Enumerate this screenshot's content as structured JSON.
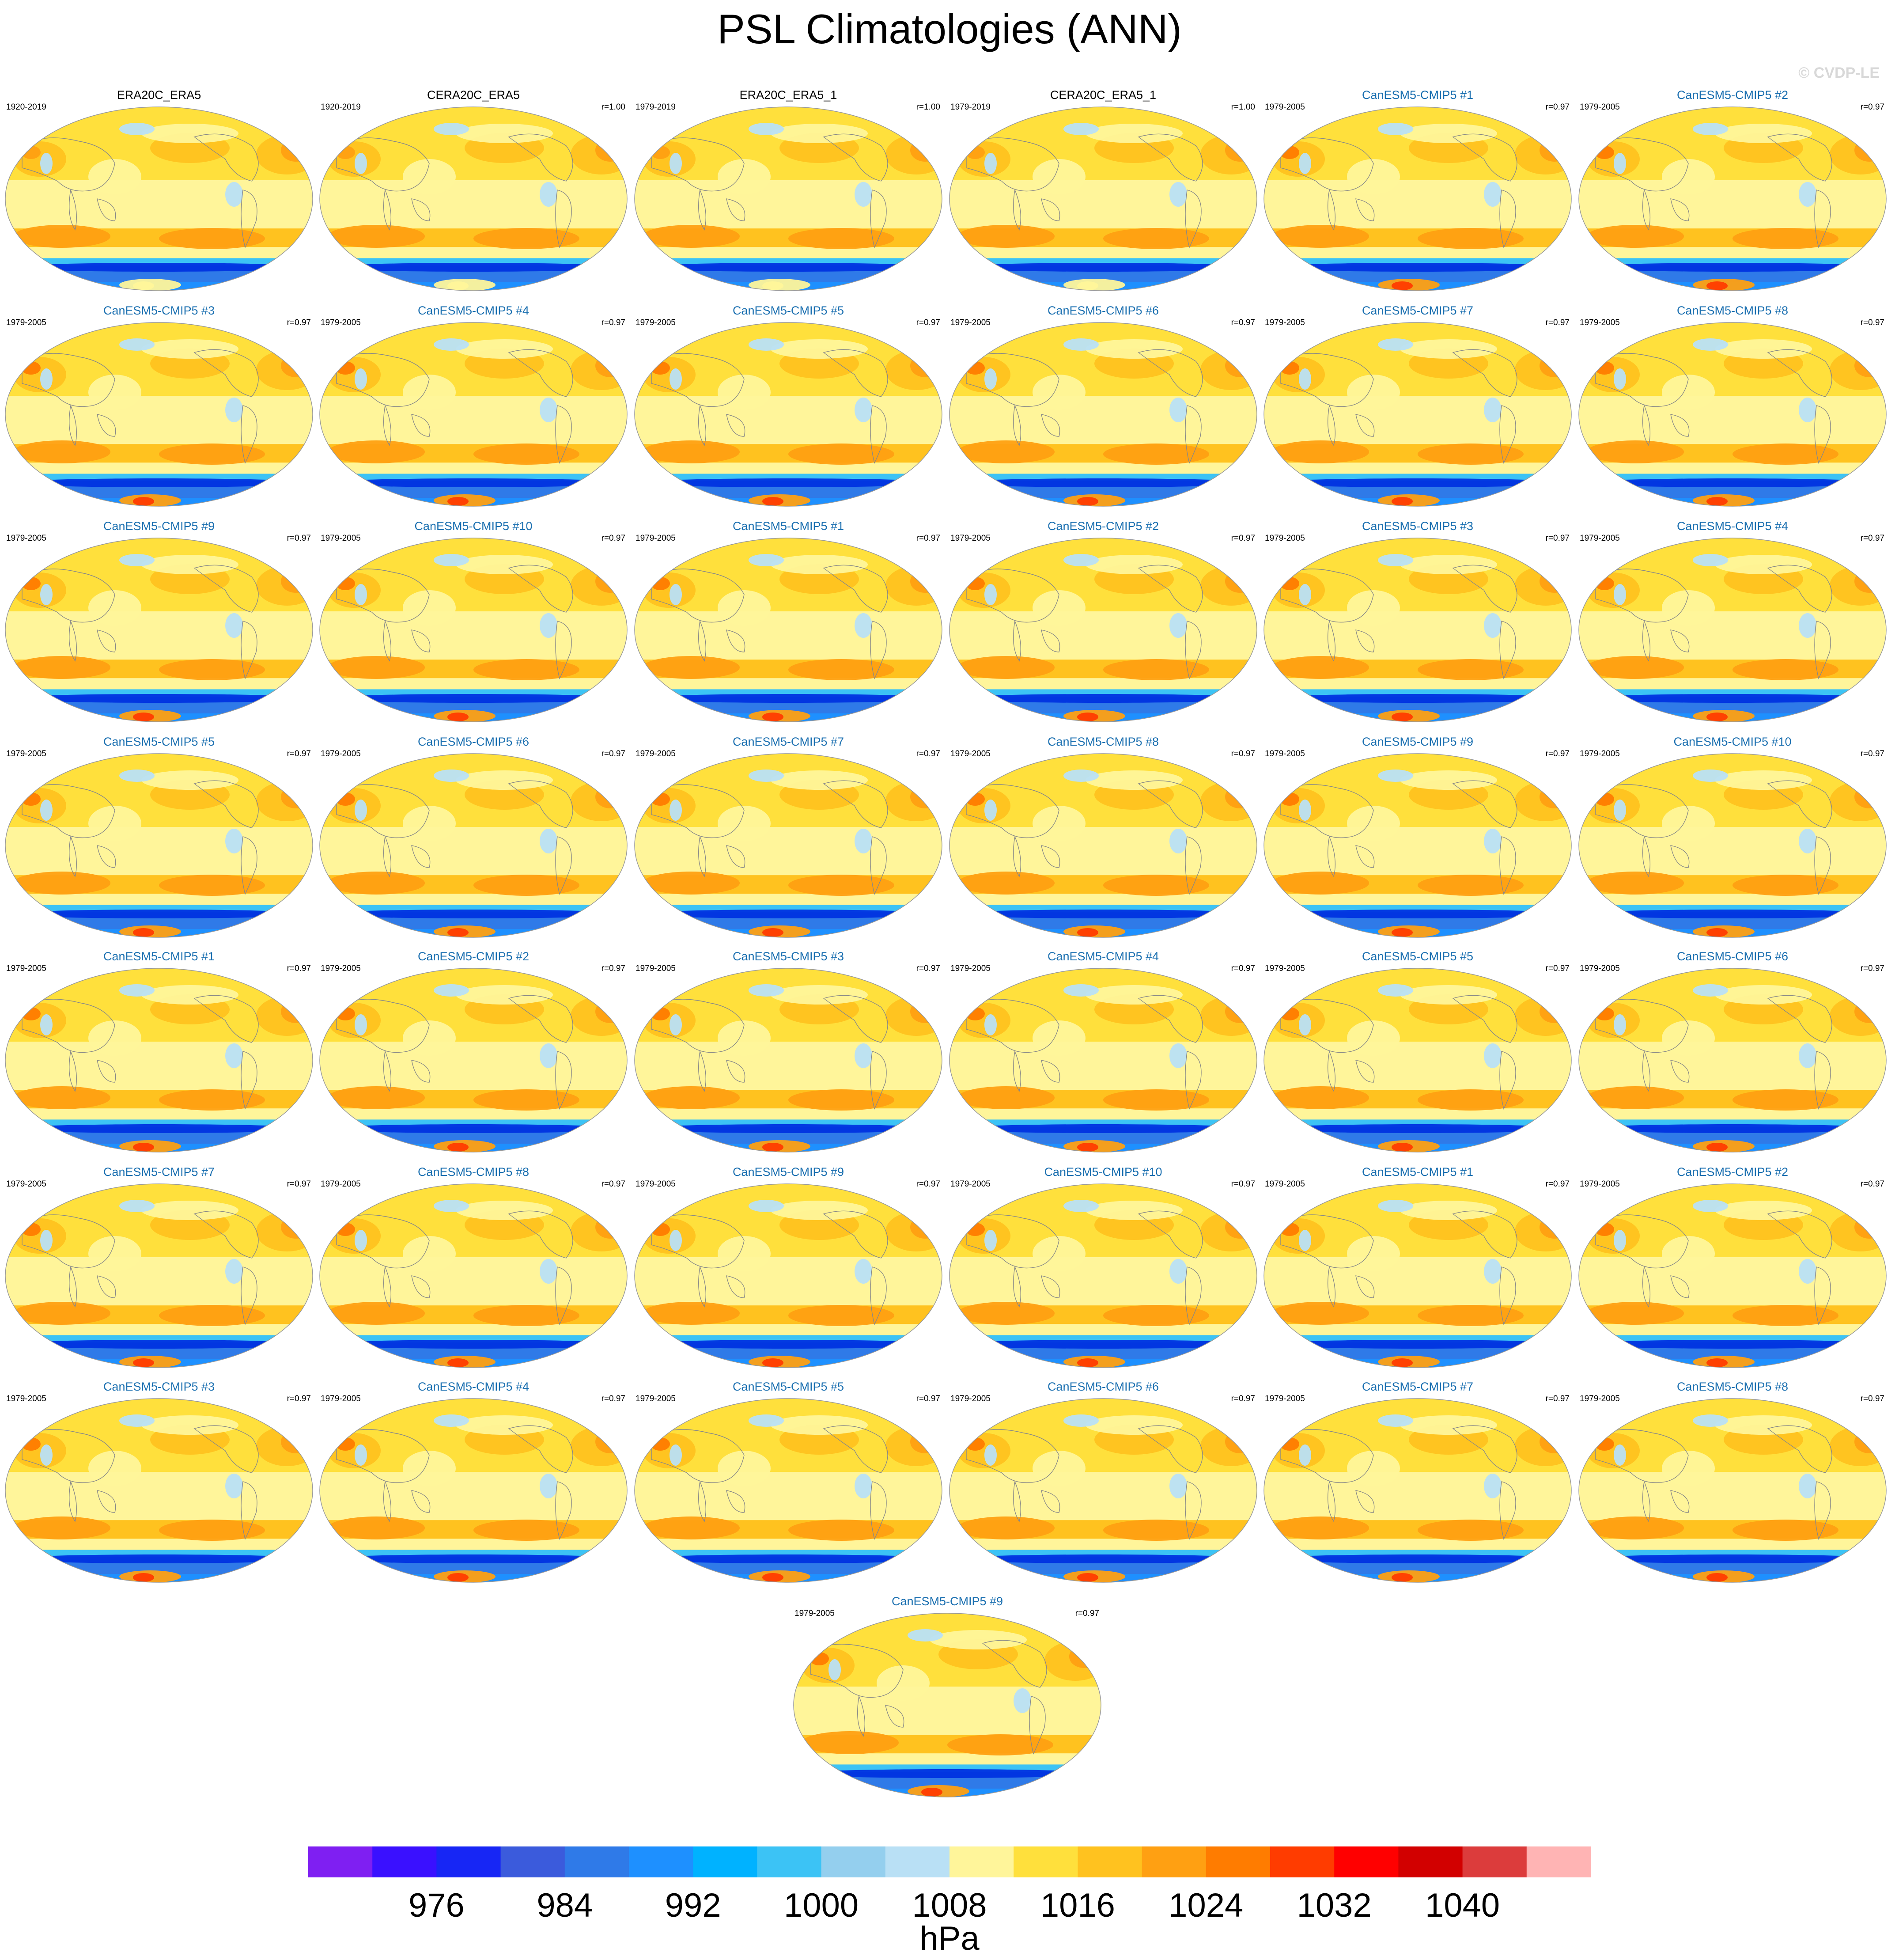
{
  "title": "PSL Climatologies (ANN)",
  "copyright": "© CVDP-LE",
  "panels": [
    {
      "name": "ERA20C_ERA5",
      "period": "1920-2019",
      "r": "",
      "kind": "obs"
    },
    {
      "name": "CERA20C_ERA5",
      "period": "1920-2019",
      "r": "r=1.00",
      "kind": "obs"
    },
    {
      "name": "ERA20C_ERA5_1",
      "period": "1979-2019",
      "r": "r=1.00",
      "kind": "obs"
    },
    {
      "name": "CERA20C_ERA5_1",
      "period": "1979-2019",
      "r": "r=1.00",
      "kind": "obs"
    },
    {
      "name": "CanESM5-CMIP5 #1",
      "period": "1979-2005",
      "r": "r=0.97",
      "kind": "model"
    },
    {
      "name": "CanESM5-CMIP5 #2",
      "period": "1979-2005",
      "r": "r=0.97",
      "kind": "model"
    },
    {
      "name": "CanESM5-CMIP5 #3",
      "period": "1979-2005",
      "r": "r=0.97",
      "kind": "model"
    },
    {
      "name": "CanESM5-CMIP5 #4",
      "period": "1979-2005",
      "r": "r=0.97",
      "kind": "model"
    },
    {
      "name": "CanESM5-CMIP5 #5",
      "period": "1979-2005",
      "r": "r=0.97",
      "kind": "model"
    },
    {
      "name": "CanESM5-CMIP5 #6",
      "period": "1979-2005",
      "r": "r=0.97",
      "kind": "model"
    },
    {
      "name": "CanESM5-CMIP5 #7",
      "period": "1979-2005",
      "r": "r=0.97",
      "kind": "model"
    },
    {
      "name": "CanESM5-CMIP5 #8",
      "period": "1979-2005",
      "r": "r=0.97",
      "kind": "model"
    },
    {
      "name": "CanESM5-CMIP5 #9",
      "period": "1979-2005",
      "r": "r=0.97",
      "kind": "model"
    },
    {
      "name": "CanESM5-CMIP5 #10",
      "period": "1979-2005",
      "r": "r=0.97",
      "kind": "model"
    },
    {
      "name": "CanESM5-CMIP5 #1",
      "period": "1979-2005",
      "r": "r=0.97",
      "kind": "model"
    },
    {
      "name": "CanESM5-CMIP5 #2",
      "period": "1979-2005",
      "r": "r=0.97",
      "kind": "model"
    },
    {
      "name": "CanESM5-CMIP5 #3",
      "period": "1979-2005",
      "r": "r=0.97",
      "kind": "model"
    },
    {
      "name": "CanESM5-CMIP5 #4",
      "period": "1979-2005",
      "r": "r=0.97",
      "kind": "model"
    },
    {
      "name": "CanESM5-CMIP5 #5",
      "period": "1979-2005",
      "r": "r=0.97",
      "kind": "model"
    },
    {
      "name": "CanESM5-CMIP5 #6",
      "period": "1979-2005",
      "r": "r=0.97",
      "kind": "model"
    },
    {
      "name": "CanESM5-CMIP5 #7",
      "period": "1979-2005",
      "r": "r=0.97",
      "kind": "model"
    },
    {
      "name": "CanESM5-CMIP5 #8",
      "period": "1979-2005",
      "r": "r=0.97",
      "kind": "model"
    },
    {
      "name": "CanESM5-CMIP5 #9",
      "period": "1979-2005",
      "r": "r=0.97",
      "kind": "model"
    },
    {
      "name": "CanESM5-CMIP5 #10",
      "period": "1979-2005",
      "r": "r=0.97",
      "kind": "model"
    },
    {
      "name": "CanESM5-CMIP5 #1",
      "period": "1979-2005",
      "r": "r=0.97",
      "kind": "model"
    },
    {
      "name": "CanESM5-CMIP5 #2",
      "period": "1979-2005",
      "r": "r=0.97",
      "kind": "model"
    },
    {
      "name": "CanESM5-CMIP5 #3",
      "period": "1979-2005",
      "r": "r=0.97",
      "kind": "model"
    },
    {
      "name": "CanESM5-CMIP5 #4",
      "period": "1979-2005",
      "r": "r=0.97",
      "kind": "model"
    },
    {
      "name": "CanESM5-CMIP5 #5",
      "period": "1979-2005",
      "r": "r=0.97",
      "kind": "model"
    },
    {
      "name": "CanESM5-CMIP5 #6",
      "period": "1979-2005",
      "r": "r=0.97",
      "kind": "model"
    },
    {
      "name": "CanESM5-CMIP5 #7",
      "period": "1979-2005",
      "r": "r=0.97",
      "kind": "model"
    },
    {
      "name": "CanESM5-CMIP5 #8",
      "period": "1979-2005",
      "r": "r=0.97",
      "kind": "model"
    },
    {
      "name": "CanESM5-CMIP5 #9",
      "period": "1979-2005",
      "r": "r=0.97",
      "kind": "model"
    },
    {
      "name": "CanESM5-CMIP5 #10",
      "period": "1979-2005",
      "r": "r=0.97",
      "kind": "model"
    },
    {
      "name": "CanESM5-CMIP5 #1",
      "period": "1979-2005",
      "r": "r=0.97",
      "kind": "model"
    },
    {
      "name": "CanESM5-CMIP5 #2",
      "period": "1979-2005",
      "r": "r=0.97",
      "kind": "model"
    },
    {
      "name": "CanESM5-CMIP5 #3",
      "period": "1979-2005",
      "r": "r=0.97",
      "kind": "model"
    },
    {
      "name": "CanESM5-CMIP5 #4",
      "period": "1979-2005",
      "r": "r=0.97",
      "kind": "model"
    },
    {
      "name": "CanESM5-CMIP5 #5",
      "period": "1979-2005",
      "r": "r=0.97",
      "kind": "model"
    },
    {
      "name": "CanESM5-CMIP5 #6",
      "period": "1979-2005",
      "r": "r=0.97",
      "kind": "model"
    },
    {
      "name": "CanESM5-CMIP5 #7",
      "period": "1979-2005",
      "r": "r=0.97",
      "kind": "model"
    },
    {
      "name": "CanESM5-CMIP5 #8",
      "period": "1979-2005",
      "r": "r=0.97",
      "kind": "model"
    },
    {
      "name": "CanESM5-CMIP5 #9",
      "period": "1979-2005",
      "r": "r=0.97",
      "kind": "model"
    }
  ],
  "chart_data": {
    "type": "heatmap",
    "title": "PSL Climatologies (ANN)",
    "units": "hPa",
    "colorbar": {
      "levels": [
        972,
        976,
        980,
        984,
        988,
        992,
        996,
        1000,
        1004,
        1008,
        1012,
        1016,
        1020,
        1024,
        1028,
        1032,
        1036,
        1040,
        1044
      ],
      "tick_labels": [
        "976",
        "984",
        "992",
        "1000",
        "1008",
        "1016",
        "1024",
        "1032",
        "1040"
      ],
      "colors": [
        "#7f1ff2",
        "#3a10ff",
        "#1726f5",
        "#3b5bdc",
        "#2f7ae8",
        "#1e90ff",
        "#00b2ff",
        "#3cc3f5",
        "#94cfee",
        "#b9e0f5",
        "#fff59a",
        "#ffe03c",
        "#ffc21f",
        "#ffa012",
        "#ff7c00",
        "#ff3c00",
        "#ff0000",
        "#d20000",
        "#dc3c3c",
        "#ffb4b4"
      ]
    }
  }
}
